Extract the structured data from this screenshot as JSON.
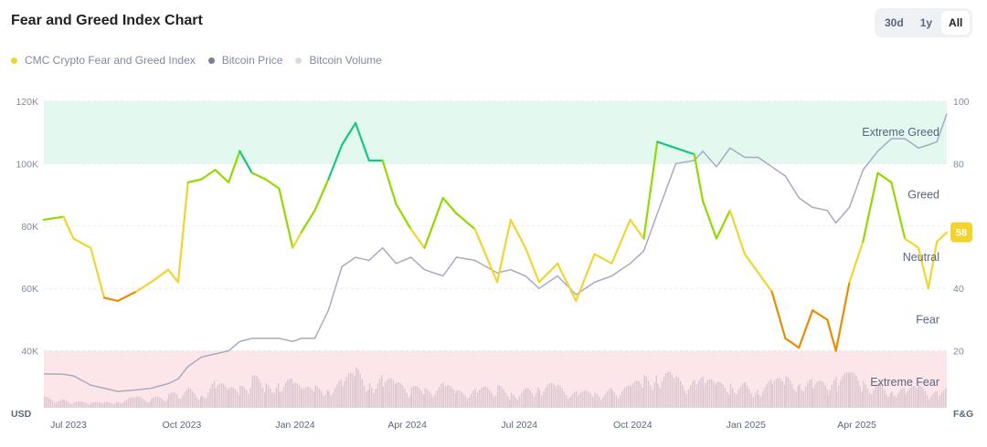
{
  "header": {
    "title": "Fear and Greed Index Chart",
    "ranges": [
      "30d",
      "1y",
      "All"
    ],
    "active_range": "All"
  },
  "legend": [
    {
      "label": "CMC Crypto Fear and Greed Index",
      "color": "#f3d42f"
    },
    {
      "label": "Bitcoin Price",
      "color": "#7b7f9a"
    },
    {
      "label": "Bitcoin Volume",
      "color": "#d6d9e0"
    }
  ],
  "chart_data": {
    "type": "line",
    "title": "Fear and Greed Index Chart",
    "left_axis": {
      "label": "USD",
      "ticks": [
        "40K",
        "60K",
        "80K",
        "100K",
        "120K"
      ],
      "tick_values": [
        40,
        60,
        80,
        100,
        120
      ],
      "range": [
        20,
        120
      ]
    },
    "right_axis": {
      "label": "F&G",
      "ticks": [
        "20",
        "40",
        "80",
        "100"
      ],
      "tick_values": [
        20,
        40,
        80,
        100
      ],
      "range": [
        0,
        100
      ]
    },
    "x_ticks": [
      {
        "label": "Jul 2023",
        "date": "2023-07-01"
      },
      {
        "label": "Oct 2023",
        "date": "2023-10-01"
      },
      {
        "label": "Jan 2024",
        "date": "2024-01-01"
      },
      {
        "label": "Apr 2024",
        "date": "2024-04-01"
      },
      {
        "label": "Jul 2024",
        "date": "2024-07-01"
      },
      {
        "label": "Oct 2024",
        "date": "2024-10-01"
      },
      {
        "label": "Jan 2025",
        "date": "2025-01-01"
      },
      {
        "label": "Apr 2025",
        "date": "2025-04-01"
      }
    ],
    "x_range": [
      "2023-06-11",
      "2025-06-13"
    ],
    "zones": [
      {
        "label": "Extreme Greed",
        "from": 80,
        "to": 100,
        "color": "#e3f8ee"
      },
      {
        "label": "Greed",
        "mid": 70
      },
      {
        "label": "Neutral",
        "mid": 50
      },
      {
        "label": "Fear",
        "mid": 30
      },
      {
        "label": "Extreme Fear",
        "from": 0,
        "to": 20,
        "color": "#fde6ea"
      }
    ],
    "dates": [
      "2023-06-11",
      "2023-06-27",
      "2023-07-05",
      "2023-07-19",
      "2023-07-30",
      "2023-08-10",
      "2023-08-25",
      "2023-09-06",
      "2023-09-20",
      "2023-09-28",
      "2023-10-06",
      "2023-10-17",
      "2023-10-28",
      "2023-11-08",
      "2023-11-17",
      "2023-11-27",
      "2023-12-08",
      "2023-12-19",
      "2023-12-30",
      "2024-01-06",
      "2024-01-17",
      "2024-01-28",
      "2024-02-08",
      "2024-02-19",
      "2024-03-01",
      "2024-03-12",
      "2024-03-23",
      "2024-04-04",
      "2024-04-15",
      "2024-04-30",
      "2024-05-11",
      "2024-05-26",
      "2024-06-13",
      "2024-06-24",
      "2024-07-06",
      "2024-07-17",
      "2024-08-01",
      "2024-08-16",
      "2024-08-31",
      "2024-09-14",
      "2024-09-29",
      "2024-10-10",
      "2024-10-21",
      "2024-11-05",
      "2024-11-20",
      "2024-11-27",
      "2024-12-08",
      "2024-12-19",
      "2024-12-31",
      "2025-01-11",
      "2025-01-22",
      "2025-02-02",
      "2025-02-13",
      "2025-02-24",
      "2025-03-08",
      "2025-03-15",
      "2025-03-26",
      "2025-04-06",
      "2025-04-18",
      "2025-04-29",
      "2025-05-10",
      "2025-05-21",
      "2025-05-29",
      "2025-06-05",
      "2025-06-13"
    ],
    "series": [
      {
        "name": "CMC Crypto Fear and Greed Index",
        "axis": "right",
        "values": [
          62,
          63,
          56,
          53,
          37,
          36,
          39,
          42,
          46,
          42,
          74,
          75,
          78,
          74,
          84,
          77,
          75,
          72,
          53,
          58,
          65,
          75,
          86,
          93,
          81,
          81,
          67,
          59,
          53,
          69,
          64,
          59,
          42,
          62,
          53,
          42,
          48,
          36,
          51,
          48,
          62,
          56,
          87,
          85,
          83,
          68,
          56,
          65,
          51,
          45,
          39,
          24,
          21,
          33,
          30,
          20,
          42,
          55,
          77,
          74,
          56,
          53,
          40,
          55,
          58
        ]
      },
      {
        "name": "Bitcoin Price",
        "axis": "left",
        "unit": "K USD",
        "values": [
          32.6,
          32.5,
          32,
          29,
          28,
          27,
          27.5,
          28,
          29.5,
          31,
          35,
          38,
          39,
          40,
          43,
          44,
          44,
          44,
          43,
          44,
          44,
          53,
          67,
          70,
          69,
          73,
          68,
          70,
          66,
          64,
          70,
          69,
          65,
          66,
          64,
          60,
          64,
          58,
          62,
          64,
          68,
          72,
          84,
          100,
          101,
          104,
          99,
          105,
          102,
          102,
          99,
          96,
          89,
          86,
          85,
          81,
          86,
          98,
          104,
          108,
          108,
          105,
          106,
          107,
          116
        ]
      },
      {
        "name": "Bitcoin Volume",
        "axis": "relative",
        "values": [
          0.2,
          0.15,
          0.12,
          0.1,
          0.1,
          0.15,
          0.2,
          0.18,
          0.25,
          0.3,
          0.35,
          0.3,
          0.5,
          0.35,
          0.4,
          0.6,
          0.45,
          0.55,
          0.5,
          0.35,
          0.4,
          0.45,
          0.5,
          0.7,
          0.55,
          0.6,
          0.45,
          0.4,
          0.35,
          0.45,
          0.3,
          0.35,
          0.4,
          0.3,
          0.35,
          0.5,
          0.4,
          0.3,
          0.3,
          0.35,
          0.4,
          0.6,
          0.75,
          0.55,
          0.5,
          0.55,
          0.45,
          0.5,
          0.45,
          0.4,
          0.5,
          0.55,
          0.6,
          0.5,
          0.45,
          0.55,
          0.65,
          0.5,
          0.45,
          0.4,
          0.35,
          0.4,
          0.3,
          0.3,
          0.35
        ]
      }
    ],
    "current_value": "58"
  }
}
